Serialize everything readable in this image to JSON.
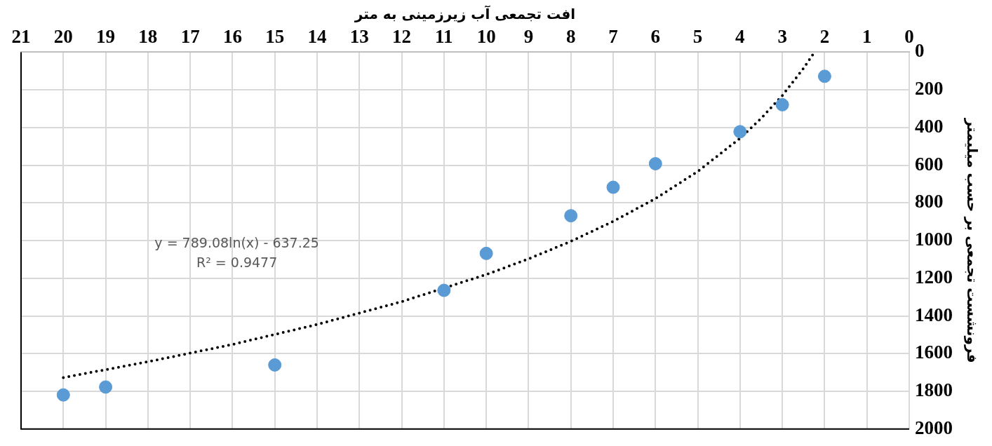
{
  "chart_data": {
    "type": "scatter",
    "xlabel": "افت تجمعی آب زیرزمینی به متر",
    "ylabel": "فرونشست تجمعی بر حسب میلیمتر",
    "xlim": [
      21,
      0
    ],
    "xticks": [
      21,
      20,
      19,
      18,
      17,
      16,
      15,
      14,
      13,
      12,
      11,
      10,
      9,
      8,
      7,
      6,
      5,
      4,
      3,
      2,
      1,
      0
    ],
    "ylim": [
      2000,
      0
    ],
    "yticks": [
      0,
      200,
      400,
      600,
      800,
      1000,
      1200,
      1400,
      1600,
      1800,
      2000
    ],
    "grid": true,
    "legend": false,
    "marker": "circle",
    "series": [
      {
        "type": "scatter",
        "color": "#5b9bd5",
        "x": [
          2,
          3,
          4,
          6,
          7,
          8,
          10,
          11,
          15,
          19,
          20
        ],
        "values": [
          128,
          279,
          422,
          592,
          717,
          868,
          1068,
          1264,
          1660,
          1777,
          1819
        ]
      },
      {
        "type": "line",
        "color": "#000000",
        "line_style": "dotted",
        "marker": "none",
        "x": [
          20,
          18,
          16,
          14,
          12,
          10,
          9,
          8,
          7,
          6,
          5,
          4,
          3.5,
          3,
          2.5,
          2.25
        ],
        "values": [
          1727,
          1643,
          1551,
          1445,
          1324,
          1180,
          1097,
          1004,
          898,
          777,
          633,
          457,
          351,
          230,
          86,
          3
        ]
      }
    ],
    "annotations": [
      "y = 789.08ln(x) - 637.25",
      "R² = 0.9477"
    ]
  }
}
